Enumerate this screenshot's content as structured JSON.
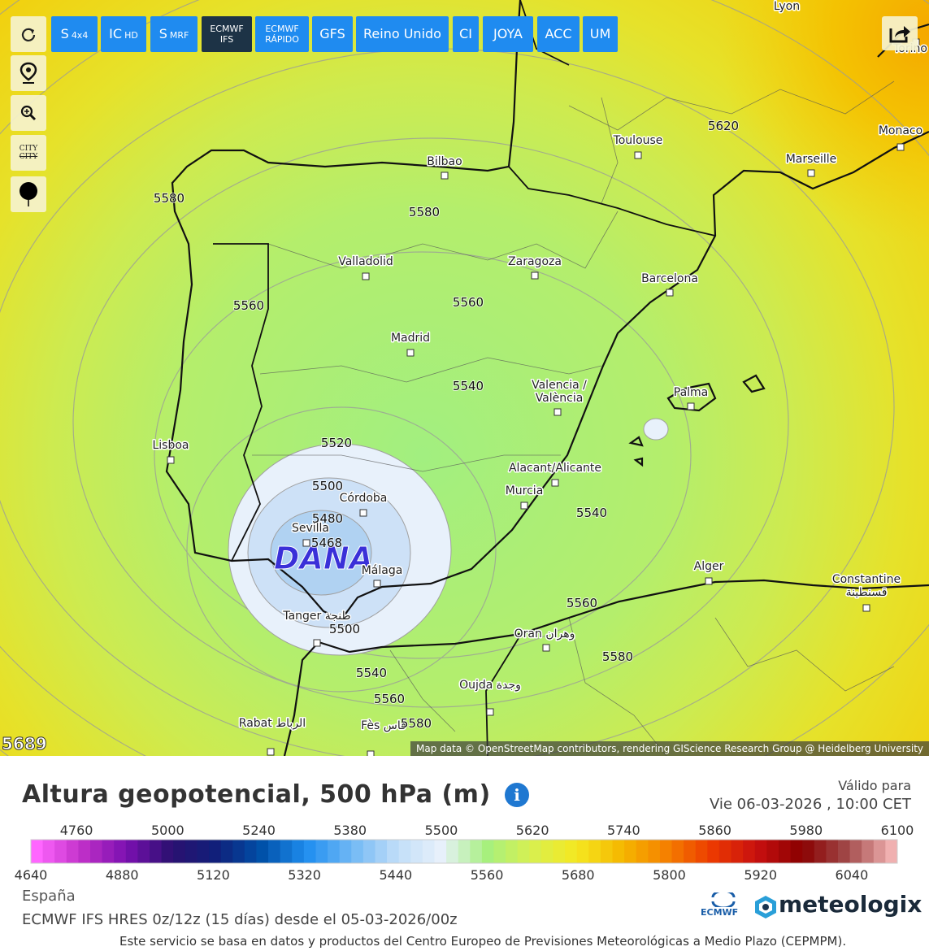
{
  "toolbar": {
    "models": [
      {
        "main": "S",
        "sub": "4x4"
      },
      {
        "main": "IC",
        "sub": "HD"
      },
      {
        "main": "S",
        "sub": "MRF"
      },
      {
        "lines": [
          "ECMWF",
          "IFS"
        ]
      },
      {
        "lines": [
          "ECMWF",
          "RÁPIDO"
        ]
      },
      {
        "main": "GFS"
      },
      {
        "main": "Reino Unido"
      },
      {
        "main": "CI"
      },
      {
        "main": "JOYA"
      },
      {
        "main": "ACC"
      },
      {
        "main": "UM"
      }
    ],
    "city_toggle": [
      "CITY",
      "CITY"
    ]
  },
  "map": {
    "cities": [
      {
        "lines": [
          "Lyon"
        ]
      },
      {
        "lines": [
          "Torino"
        ]
      },
      {
        "lines": [
          "Toulouse"
        ]
      },
      {
        "lines": [
          "Monaco"
        ]
      },
      {
        "lines": [
          "Marseille"
        ]
      },
      {
        "lines": [
          "Bilbao"
        ]
      },
      {
        "lines": [
          "Valladolid"
        ]
      },
      {
        "lines": [
          "Zaragoza"
        ]
      },
      {
        "lines": [
          "Barcelona"
        ]
      },
      {
        "lines": [
          "Madrid"
        ]
      },
      {
        "lines": [
          "Valencia /",
          "València"
        ]
      },
      {
        "lines": [
          "Palma"
        ]
      },
      {
        "lines": [
          "Lisboa"
        ]
      },
      {
        "lines": [
          "Córdoba"
        ]
      },
      {
        "lines": [
          "Sevilla"
        ]
      },
      {
        "lines": [
          "Málaga"
        ]
      },
      {
        "lines": [
          "Alacant/Alicante"
        ]
      },
      {
        "lines": [
          "Murcia"
        ]
      },
      {
        "lines": [
          "Alger"
        ]
      },
      {
        "lines": [
          "Constantine",
          "قسنطينة"
        ]
      },
      {
        "lines": [
          "Tanger طنجة"
        ]
      },
      {
        "lines": [
          "Oran وهران"
        ]
      },
      {
        "lines": [
          "Oujda وجدة"
        ]
      },
      {
        "lines": [
          "Rabat الرباط"
        ]
      },
      {
        "lines": [
          "Fès فاس"
        ]
      }
    ],
    "contours": [
      "5620",
      "5580",
      "5580",
      "5560",
      "5560",
      "5540",
      "5520",
      "5500",
      "5480",
      "5468",
      "5500",
      "5540",
      "5560",
      "5580",
      "5540",
      "5560",
      "5580"
    ],
    "feature": "DANA",
    "corner_value": "5689",
    "attribution": "Map data © OpenStreetMap contributors, rendering GIScience Research Group @ Heidelberg University"
  },
  "panel": {
    "title": "Altura geopotencial, 500 hPa (m)",
    "valid_label": "Válido para",
    "valid_time": "Vie 06-03-2026 , 10:00 CET",
    "legend_top": [
      "4760",
      "5000",
      "5240",
      "5380",
      "5500",
      "5620",
      "5740",
      "5860",
      "5980",
      "6100"
    ],
    "legend_bottom": [
      "4640",
      "4880",
      "5120",
      "5320",
      "5440",
      "5560",
      "5680",
      "5800",
      "5920",
      "6040"
    ],
    "region": "España",
    "source": "ECMWF IFS HRES 0z/12z (15 días) desde el 05-03-2026/00z",
    "footer": "Este servicio se basa en datos y productos del Centro Europeo de Previsiones Meteorológicas a Medio Plazo (CEPMPM).",
    "logo_ecmwf": "ECMWF",
    "logo_brand": "meteologix"
  }
}
